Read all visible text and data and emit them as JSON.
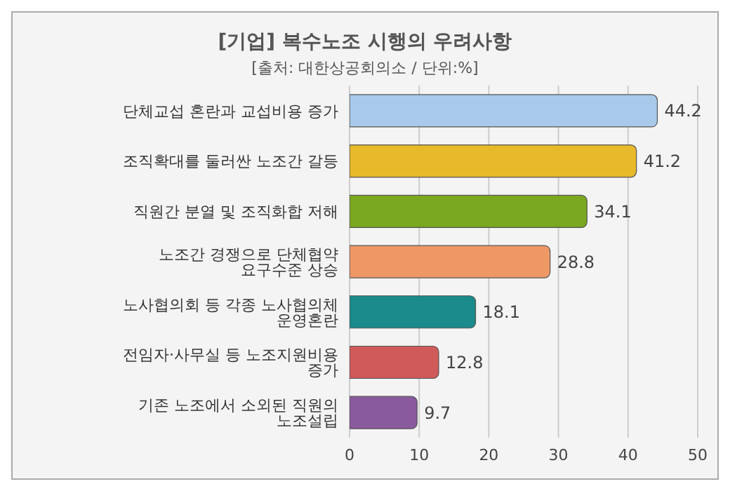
{
  "chart_data": {
    "type": "bar",
    "orientation": "horizontal",
    "title": "[기업] 복수노조 시행의 우려사항",
    "subtitle": "[출처: 대한상공회의소 / 단위:%]",
    "categories": [
      "단체교섭 혼란과 교섭비용 증가",
      "조직확대를 둘러싼 노조간 갈등",
      "직원간 분열 및 조직화합 저해",
      "노조간 경쟁으로 단체협약 요구수준 상승",
      "노사협의회 등 각종 노사협의체 운영혼란",
      "전임자·사무실 등 노조지원비용 증가",
      "기존 노조에서 소외된 직원의 노조설립"
    ],
    "values": [
      44.2,
      41.2,
      34.1,
      28.8,
      18.1,
      12.8,
      9.7
    ],
    "colors": [
      "#a9c9ea",
      "#e8b92a",
      "#7aa820",
      "#ee9866",
      "#1a8a8a",
      "#d05a5a",
      "#8a5a9e"
    ],
    "xlim": [
      0,
      50
    ],
    "xticks": [
      0,
      10,
      20,
      30,
      40,
      50
    ],
    "grid": "x",
    "data_labels": true
  }
}
